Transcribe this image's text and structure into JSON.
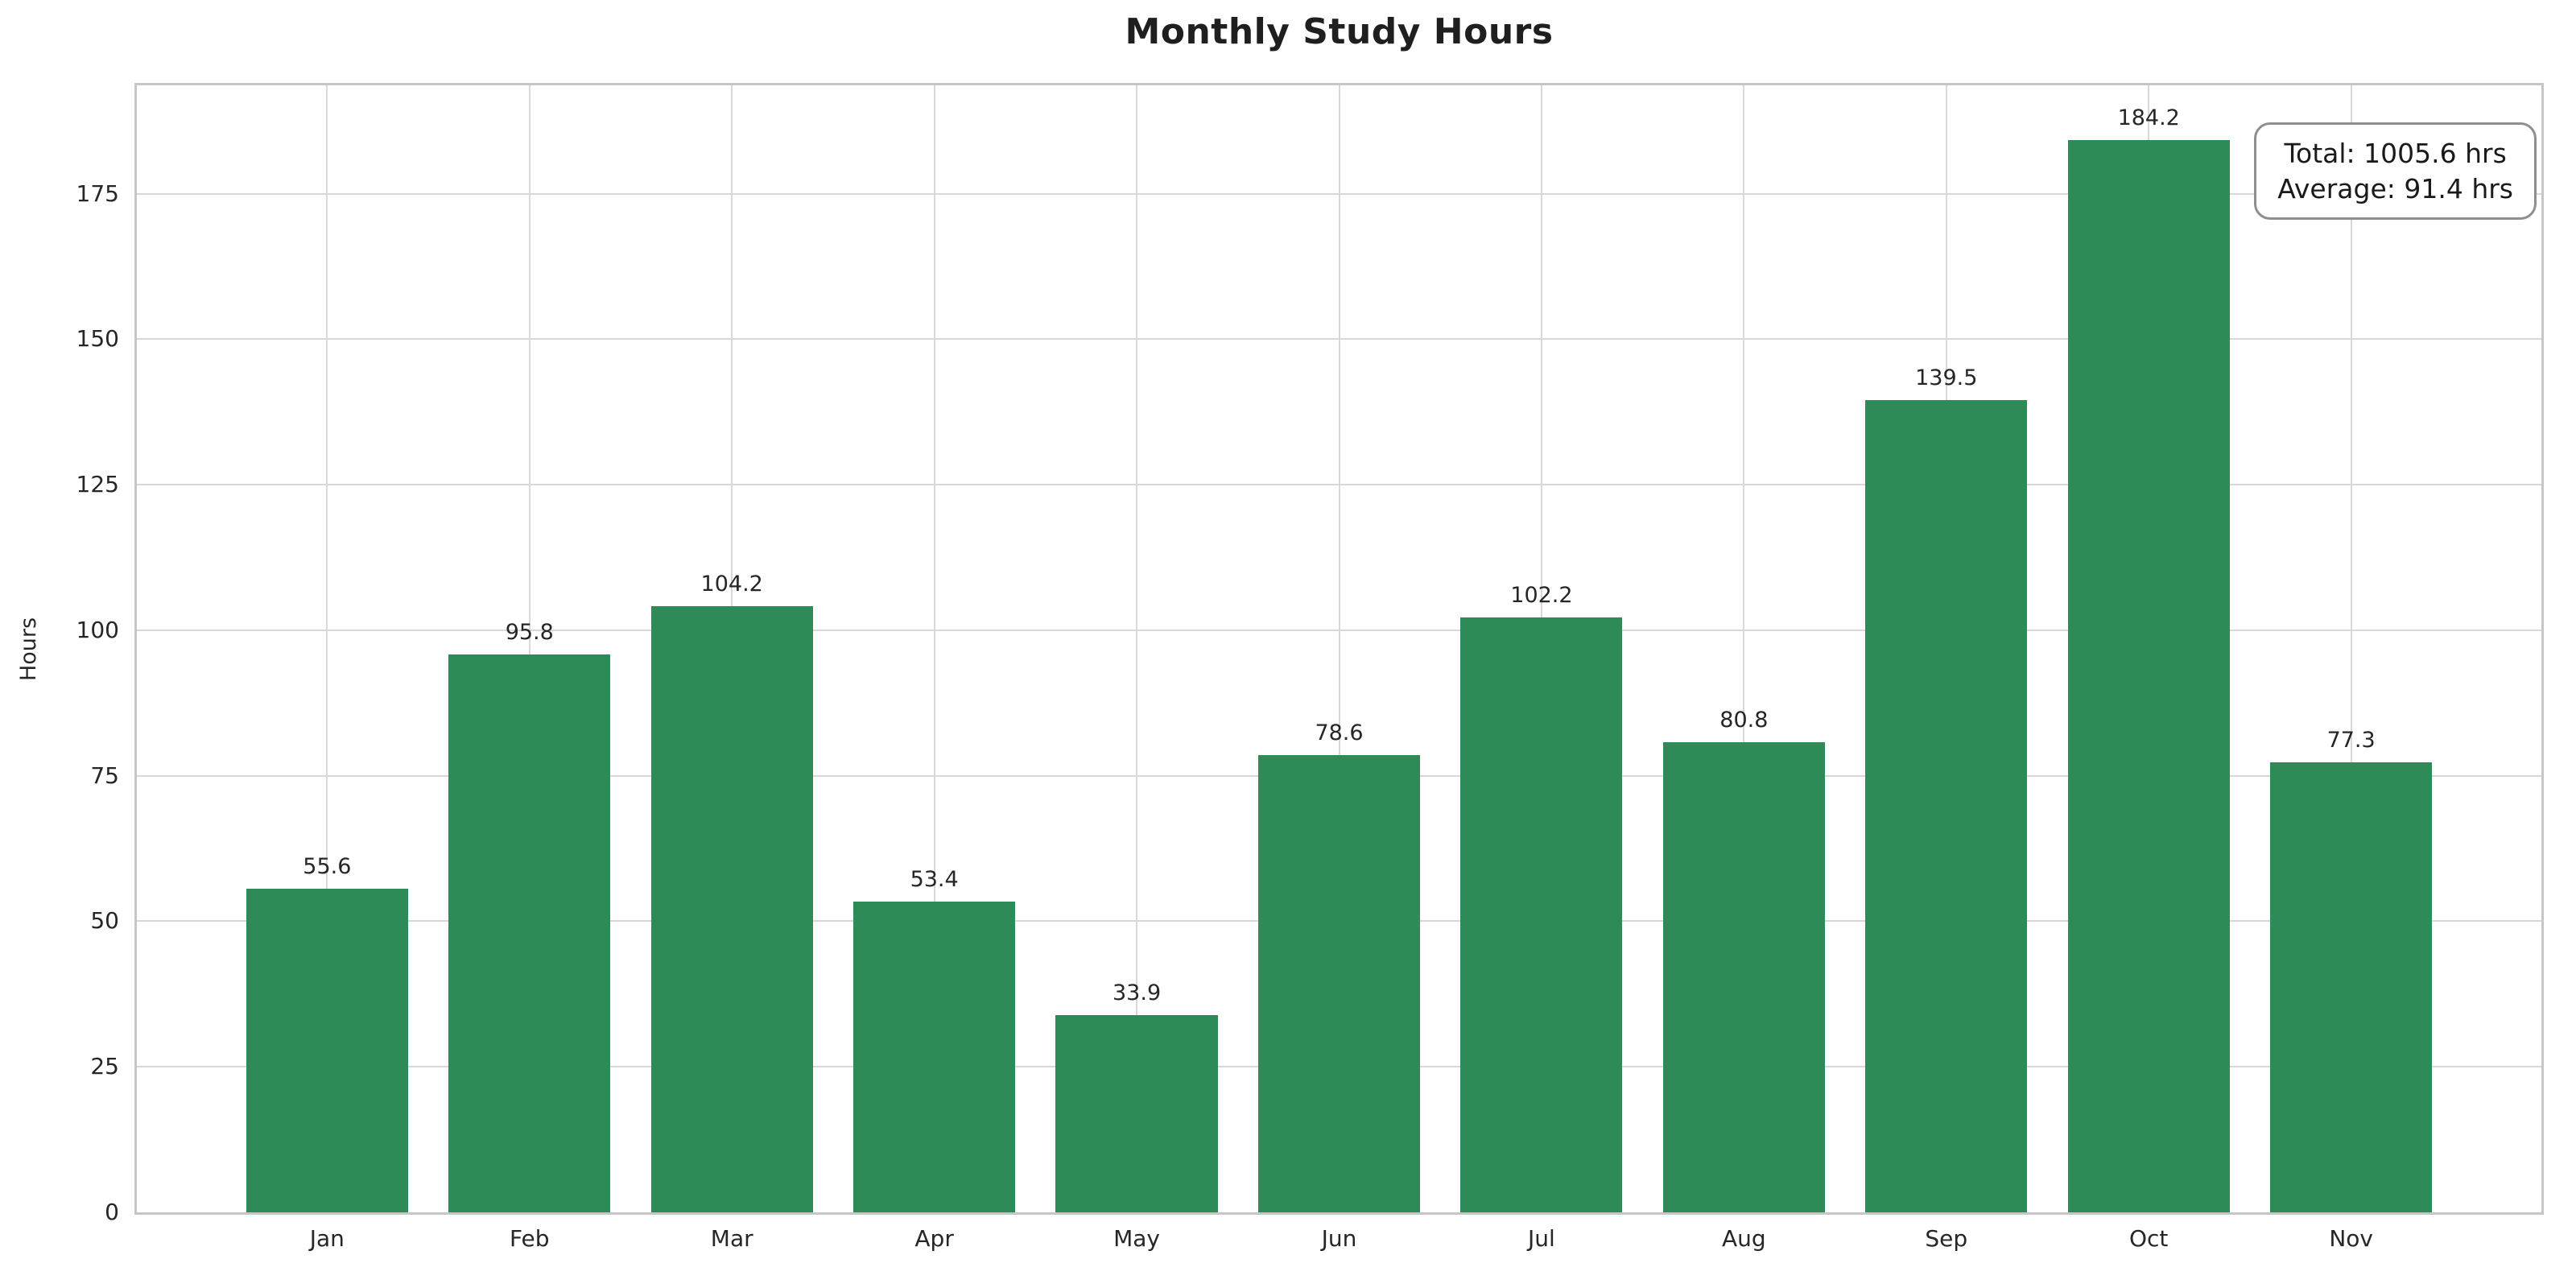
{
  "chart_data": {
    "type": "bar",
    "title": "Monthly Study Hours",
    "categories": [
      "Jan",
      "Feb",
      "Mar",
      "Apr",
      "May",
      "Jun",
      "Jul",
      "Aug",
      "Sep",
      "Oct",
      "Nov"
    ],
    "values": [
      55.6,
      95.8,
      104.2,
      53.4,
      33.9,
      78.6,
      102.2,
      80.8,
      139.5,
      184.2,
      77.3
    ],
    "value_labels": [
      "55.6",
      "95.8",
      "104.2",
      "53.4",
      "33.9",
      "78.6",
      "102.2",
      "80.8",
      "139.5",
      "184.2",
      "77.3"
    ],
    "xlabel": "",
    "ylabel": "Hours",
    "yticks": [
      0,
      25,
      50,
      75,
      100,
      125,
      150,
      175
    ],
    "ylim": [
      0,
      193.6
    ],
    "xlim_units": [
      -0.94,
      10.94
    ],
    "bar_width_units": 0.8,
    "grid": true,
    "legend": "none",
    "bar_color": "#2e8b57",
    "grid_color": "#d8d8d8",
    "spine_color": "#c6c6c6",
    "text_color": "#262626",
    "annotation": {
      "total": "Total: 1005.6 hrs",
      "average": "Average: 91.4 hrs"
    }
  }
}
